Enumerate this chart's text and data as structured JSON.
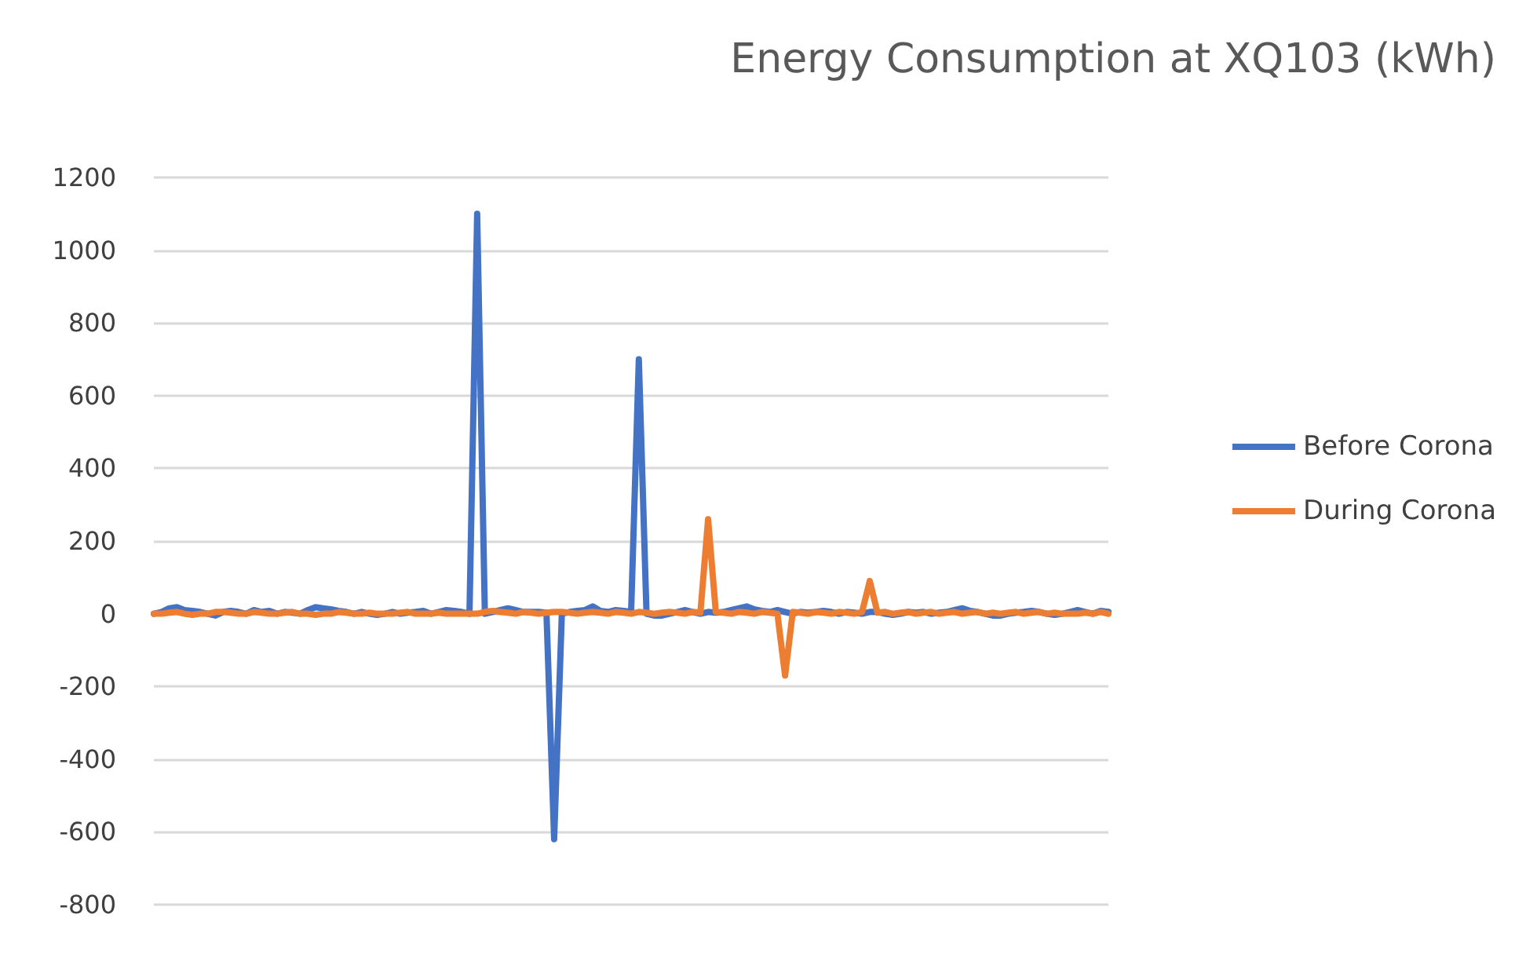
{
  "chart_data": {
    "type": "line",
    "title": "Energy Consumption at XQ103 (kWh)",
    "categories": [
      null,
      null,
      null,
      null,
      null,
      null,
      null,
      null,
      null,
      null,
      null,
      null,
      null,
      null,
      null,
      null,
      null,
      null,
      null,
      null,
      null,
      null,
      null,
      null,
      null,
      null,
      null,
      null,
      null,
      null,
      null,
      null,
      null,
      null,
      null,
      null,
      null,
      null,
      null,
      null,
      null,
      null,
      null,
      null,
      null,
      null,
      null,
      null,
      null,
      null,
      null,
      null,
      null,
      null,
      null,
      null,
      null,
      null,
      null,
      null,
      null,
      null,
      null,
      null,
      null,
      null,
      null,
      null,
      null,
      null,
      null,
      null,
      null,
      null,
      null,
      null,
      null,
      null,
      null,
      null,
      null,
      null,
      null,
      null,
      null,
      null,
      null,
      null,
      null,
      null,
      null,
      null,
      null,
      null,
      null,
      null,
      null,
      null,
      null,
      null,
      null,
      null,
      null,
      null,
      null,
      null,
      null,
      null,
      null,
      null,
      null,
      null,
      null,
      null,
      null,
      null,
      null,
      null,
      null,
      null,
      null,
      null,
      null,
      null,
      null
    ],
    "series": [
      {
        "name": "Before Corona",
        "color": "#4472c4",
        "values": [
          0,
          5,
          15,
          18,
          10,
          8,
          5,
          0,
          -5,
          5,
          8,
          5,
          0,
          10,
          5,
          8,
          0,
          5,
          3,
          0,
          10,
          18,
          15,
          12,
          8,
          5,
          0,
          5,
          0,
          -3,
          0,
          5,
          0,
          3,
          5,
          8,
          0,
          5,
          10,
          8,
          5,
          0,
          1100,
          0,
          5,
          10,
          15,
          10,
          5,
          5,
          5,
          3,
          -620,
          0,
          5,
          8,
          10,
          20,
          8,
          5,
          10,
          8,
          5,
          700,
          0,
          -5,
          -5,
          0,
          5,
          10,
          5,
          0,
          5,
          3,
          5,
          10,
          15,
          20,
          12,
          8,
          5,
          10,
          5,
          0,
          5,
          3,
          5,
          8,
          5,
          0,
          5,
          3,
          0,
          5,
          5,
          0,
          -3,
          0,
          5,
          3,
          5,
          0,
          3,
          5,
          10,
          15,
          8,
          5,
          0,
          -5,
          -5,
          0,
          3,
          5,
          8,
          5,
          0,
          -3,
          0,
          5,
          10,
          5,
          0,
          8,
          5
        ]
      },
      {
        "name": "During Corona",
        "color": "#ed7d31",
        "values": [
          0,
          0,
          3,
          5,
          0,
          -3,
          0,
          0,
          5,
          5,
          3,
          0,
          0,
          5,
          3,
          0,
          0,
          3,
          5,
          0,
          0,
          -3,
          0,
          0,
          5,
          3,
          0,
          0,
          3,
          0,
          0,
          0,
          3,
          5,
          0,
          0,
          0,
          3,
          0,
          0,
          0,
          0,
          0,
          5,
          8,
          5,
          3,
          0,
          5,
          3,
          0,
          3,
          5,
          5,
          3,
          0,
          3,
          5,
          3,
          0,
          5,
          3,
          0,
          5,
          3,
          0,
          3,
          5,
          3,
          0,
          5,
          3,
          260,
          5,
          3,
          0,
          5,
          3,
          0,
          5,
          3,
          0,
          -170,
          5,
          3,
          0,
          5,
          3,
          0,
          5,
          3,
          0,
          5,
          90,
          3,
          5,
          0,
          3,
          5,
          0,
          3,
          5,
          0,
          3,
          5,
          0,
          3,
          5,
          0,
          3,
          0,
          3,
          5,
          0,
          3,
          5,
          0,
          3,
          0,
          0,
          0,
          3,
          0,
          5,
          0
        ]
      }
    ],
    "ylim": [
      -800,
      1200
    ],
    "yticks": [
      -800,
      -600,
      -400,
      -200,
      0,
      200,
      400,
      600,
      800,
      1000,
      1200
    ],
    "grid": "y",
    "legend": "right",
    "marker": "none",
    "line_style": "solid"
  }
}
